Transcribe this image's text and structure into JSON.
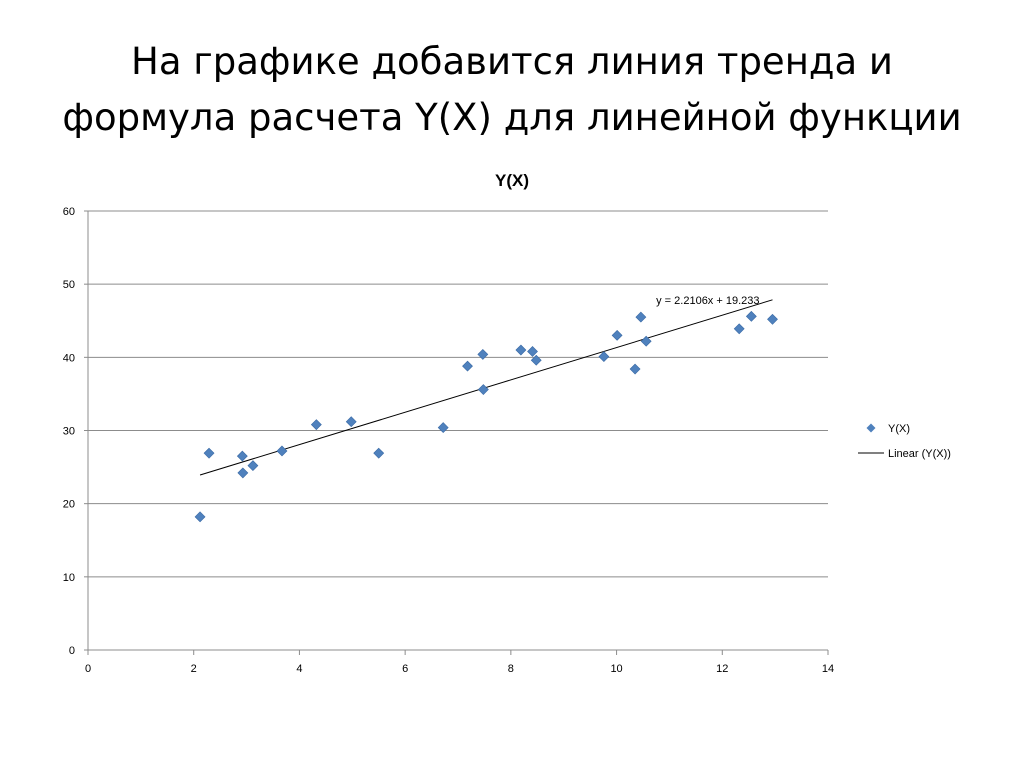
{
  "slide": {
    "title_line1": "На графике добавится линия тренда и",
    "title_line2": "формула расчета Y(X) для линейной функции"
  },
  "chart_data": {
    "type": "scatter",
    "title": "Y(X)",
    "xlabel": "",
    "ylabel": "",
    "xlim": [
      0,
      14
    ],
    "ylim": [
      0,
      60
    ],
    "xticks": [
      0,
      2,
      4,
      6,
      8,
      10,
      12,
      14
    ],
    "yticks": [
      0,
      10,
      20,
      30,
      40,
      50,
      60
    ],
    "grid": "horizontal",
    "legend_position": "right",
    "marker_color": "#4f81bd",
    "trend_color": "#000000",
    "series": [
      {
        "name": "Y(X)",
        "points": [
          [
            2.12,
            18.2
          ],
          [
            2.29,
            26.9
          ],
          [
            2.92,
            26.5
          ],
          [
            2.93,
            24.2
          ],
          [
            3.12,
            25.2
          ],
          [
            3.67,
            27.2
          ],
          [
            4.32,
            30.8
          ],
          [
            4.98,
            31.2
          ],
          [
            5.5,
            26.9
          ],
          [
            6.72,
            30.4
          ],
          [
            7.18,
            38.8
          ],
          [
            7.47,
            40.4
          ],
          [
            7.48,
            35.6
          ],
          [
            8.19,
            41.0
          ],
          [
            8.41,
            40.8
          ],
          [
            8.48,
            39.6
          ],
          [
            9.76,
            40.1
          ],
          [
            10.01,
            43.0
          ],
          [
            10.35,
            38.4
          ],
          [
            10.46,
            45.5
          ],
          [
            10.56,
            42.2
          ],
          [
            12.32,
            43.9
          ],
          [
            12.55,
            45.6
          ],
          [
            12.95,
            45.2
          ]
        ]
      }
    ],
    "trendline": {
      "name": "Linear (Y(X))",
      "slope": 2.2106,
      "intercept": 19.233,
      "x_range": [
        2.12,
        12.95
      ],
      "equation_label": "y = 2.2106x + 19.233"
    }
  }
}
